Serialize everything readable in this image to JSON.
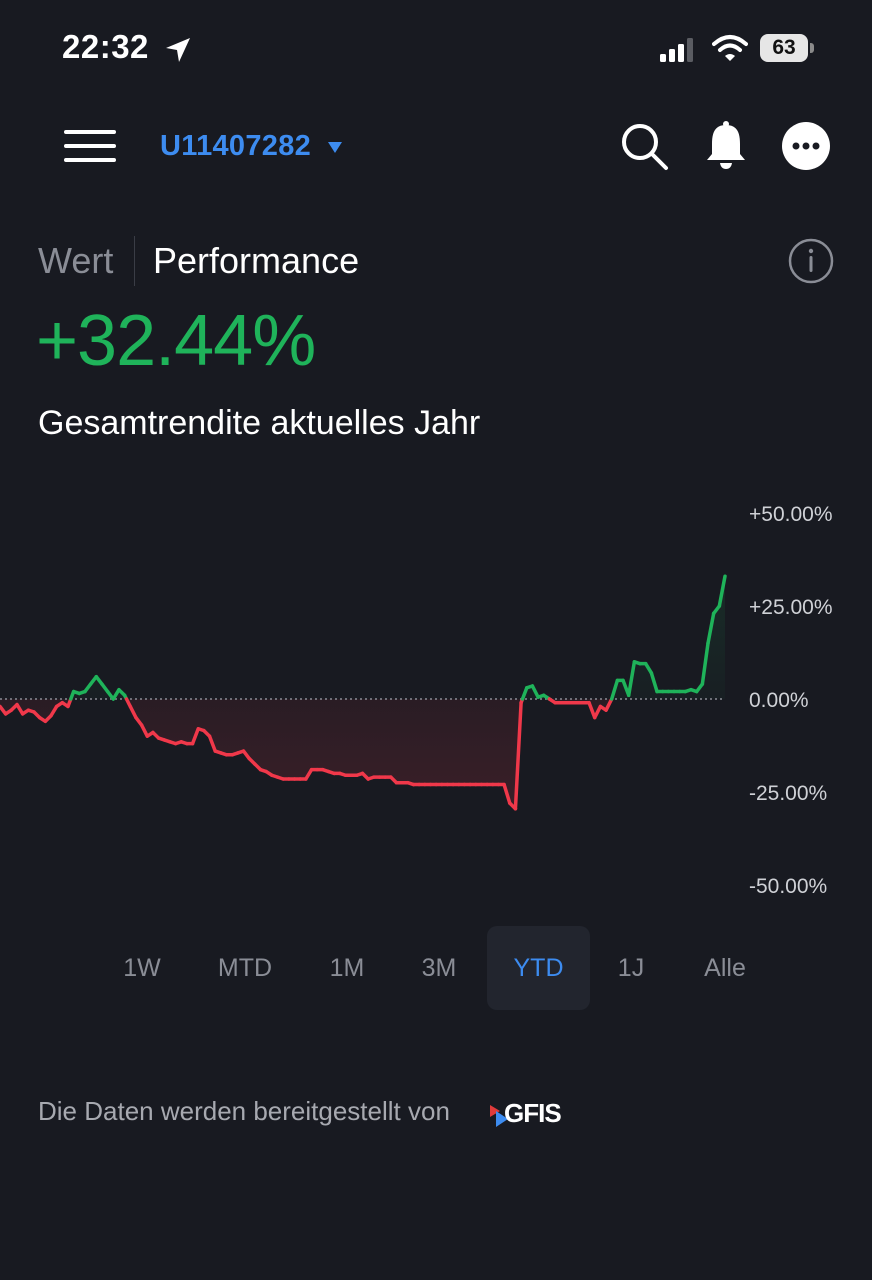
{
  "status_bar": {
    "time": "22:32",
    "battery": "63",
    "icons": [
      "location-arrow-icon",
      "signal-icon",
      "wifi-icon",
      "battery-icon"
    ]
  },
  "header": {
    "account": "U11407282",
    "icons": [
      "menu-icon",
      "search-icon",
      "bell-icon",
      "more-icon"
    ]
  },
  "tabs": [
    {
      "label": "Wert",
      "active": false
    },
    {
      "label": "Performance",
      "active": true
    }
  ],
  "performance": {
    "value": "+32.44%",
    "caption": "Gesamtrendite aktuelles Jahr"
  },
  "colors": {
    "background": "#181a21",
    "positive": "#1fb35a",
    "negative": "#f0384a",
    "accent": "#3d8cf0"
  },
  "chart_data": {
    "type": "line",
    "ylim": [
      -50,
      50
    ],
    "y_ticks": [
      "+50.00%",
      "+25.00%",
      "0.00%",
      "-25.00%",
      "-50.00%"
    ],
    "y_tick_values": [
      50,
      25,
      0,
      -25,
      -50
    ],
    "baseline": 0,
    "grid": false,
    "series": [
      {
        "values": [
          -2,
          -4,
          -3,
          -1.5,
          -4,
          -3,
          -3.5,
          -5,
          -6,
          -4.5,
          -2,
          -1,
          -2,
          2,
          1.5,
          2,
          4,
          6,
          4,
          2,
          0,
          2.5,
          1,
          -2,
          -5,
          -7,
          -10,
          -9,
          -10.5,
          -11,
          -11.5,
          -12,
          -11.5,
          -12,
          -12,
          -8,
          -8.5,
          -10,
          -14,
          -14.5,
          -15,
          -15,
          -14.5,
          -14,
          -16,
          -17.5,
          -19,
          -19.5,
          -20.5,
          -21,
          -21.5,
          -21.5,
          -21.5,
          -21.5,
          -21.5,
          -19,
          -19,
          -19,
          -19.5,
          -20,
          -20,
          -20.5,
          -20.5,
          -20.5,
          -20,
          -21.5,
          -21,
          -21,
          -21,
          -21,
          -22.5,
          -22.5,
          -22.5,
          -23,
          -23,
          -23,
          -23,
          -23,
          -23,
          -23,
          -23,
          -23,
          -23,
          -23,
          -23,
          -23,
          -23,
          -23,
          -23,
          -23,
          -28,
          -29.5,
          -1,
          3,
          3.5,
          0.5,
          1,
          0,
          -1,
          -1,
          -1,
          -1,
          -1,
          -1,
          -1,
          -5,
          -2,
          -3,
          0,
          5,
          5,
          1,
          10,
          9.5,
          9.5,
          7,
          2,
          2,
          2,
          2,
          2,
          2,
          2.5,
          2,
          4,
          15,
          23,
          25,
          33
        ]
      }
    ]
  },
  "ranges": [
    {
      "label": "1W",
      "active": false
    },
    {
      "label": "MTD",
      "active": false
    },
    {
      "label": "1M",
      "active": false
    },
    {
      "label": "3M",
      "active": false
    },
    {
      "label": "YTD",
      "active": true
    },
    {
      "label": "1J",
      "active": false
    },
    {
      "label": "Alle",
      "active": false
    }
  ],
  "footer": {
    "text": "Die Daten werden bereitgestellt von",
    "logo": "GFIS"
  }
}
